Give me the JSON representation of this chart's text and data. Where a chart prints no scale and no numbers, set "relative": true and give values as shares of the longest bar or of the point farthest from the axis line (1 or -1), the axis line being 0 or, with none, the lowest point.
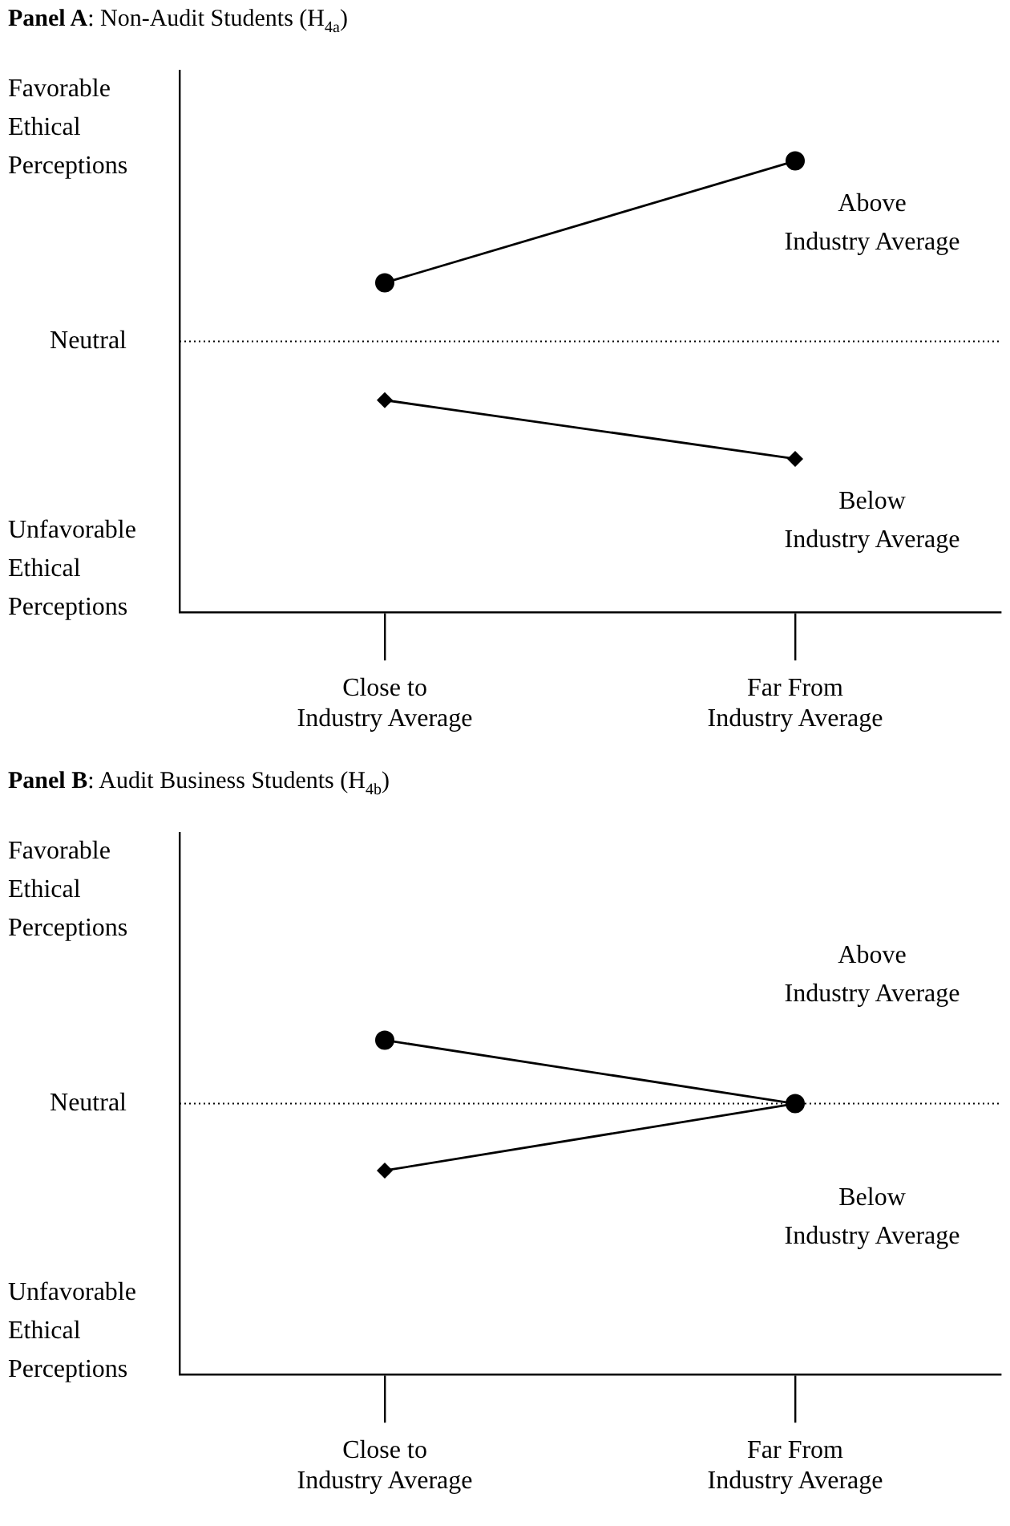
{
  "chart_data": [
    {
      "type": "line",
      "title": "Panel A: Non-Audit Students (H$_{4a}$)",
      "categories": [
        "Close to Industry Average",
        "Far From Industry Average"
      ],
      "relative": true,
      "series": [
        {
          "name": "Above Industry Average",
          "color": "#000000",
          "values": [
            0.73,
            1
          ],
          "marker": "circle"
        },
        {
          "name": "Below Industry Average",
          "color": "#000000",
          "values": [
            0.47,
            0.34
          ],
          "marker": "diamond"
        }
      ],
      "ref_lines": [
        {
          "axis": "y",
          "value": 0.6,
          "label": "Neutral",
          "line_style": "dotted",
          "color": "#000000"
        }
      ],
      "annotations": [
        "Favorable Ethical Perceptions",
        "Unfavorable Ethical Perceptions"
      ],
      "grid": false,
      "legend": false
    },
    {
      "type": "line",
      "title": "Panel B: Audit Business Students (H$_{4b}$)",
      "categories": [
        "Close to Industry Average",
        "Far From Industry Average"
      ],
      "relative": true,
      "series": [
        {
          "name": "Above Industry Average",
          "color": "#000000",
          "values": [
            1,
            0.81
          ],
          "marker": "circle"
        },
        {
          "name": "Below Industry Average",
          "color": "#000000",
          "values": [
            0.61,
            0.81
          ],
          "marker": "diamond"
        }
      ],
      "ref_lines": [
        {
          "axis": "y",
          "value": 0.81,
          "label": "Neutral",
          "line_style": "dotted",
          "color": "#000000"
        }
      ],
      "annotations": [
        "Favorable Ethical Perceptions",
        "Unfavorable Ethical Perceptions"
      ],
      "grid": false,
      "legend": false
    }
  ]
}
